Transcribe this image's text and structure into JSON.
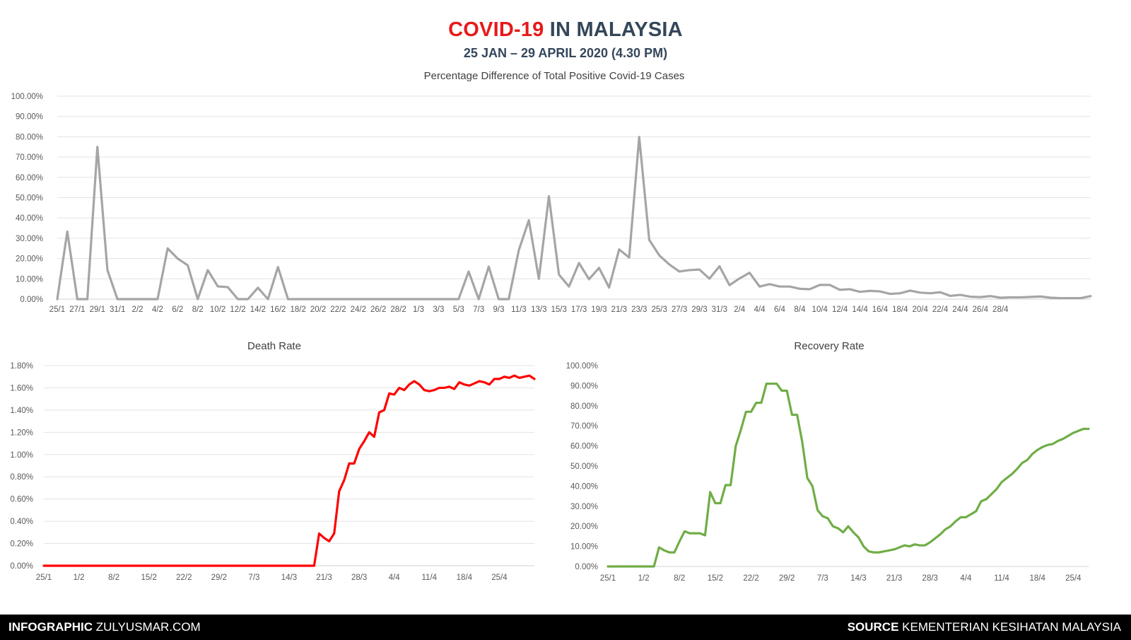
{
  "header": {
    "title_red": "COVID-19",
    "title_rest": "IN MALAYSIA",
    "subtitle": "25 JAN – 29 APRIL 2020 (4.30 PM)"
  },
  "footer": {
    "left_bold": "INFOGRAPHIC",
    "left_text": "ZULYUSMAR.COM",
    "right_bold": "SOURCE",
    "right_text": "KEMENTERIAN KESIHATAN MALAYSIA"
  },
  "colors": {
    "positive": "#a5a5a5",
    "death": "#ff0000",
    "recovery": "#70ad47"
  },
  "chart_data": [
    {
      "id": "positive",
      "type": "line",
      "title": "Percentage Difference of Total Positive Covid-19 Cases",
      "ylim": [
        0,
        100
      ],
      "yticks": [
        "0.00%",
        "10.00%",
        "20.00%",
        "30.00%",
        "40.00%",
        "50.00%",
        "60.00%",
        "70.00%",
        "80.00%",
        "90.00%",
        "100.00%"
      ],
      "grid": true,
      "xticks": [
        "25/1",
        "27/1",
        "29/1",
        "31/1",
        "2/2",
        "4/2",
        "6/2",
        "8/2",
        "10/2",
        "12/2",
        "14/2",
        "16/2",
        "18/2",
        "20/2",
        "22/2",
        "24/2",
        "26/2",
        "28/2",
        "1/3",
        "3/3",
        "5/3",
        "7/3",
        "9/3",
        "11/3",
        "13/3",
        "15/3",
        "17/3",
        "19/3",
        "21/3",
        "23/3",
        "25/3",
        "27/3",
        "29/3",
        "31/3",
        "2/4",
        "4/4",
        "6/4",
        "8/4",
        "10/4",
        "12/4",
        "14/4",
        "16/4",
        "18/4",
        "20/4",
        "22/4",
        "24/4",
        "26/4",
        "28/4"
      ],
      "series": [
        {
          "values": [
            0,
            33.3,
            0,
            0,
            75,
            14.3,
            0,
            0,
            0,
            0,
            0,
            25,
            20,
            16.7,
            0,
            14.3,
            6.3,
            5.9,
            0,
            0,
            5.6,
            0,
            15.8,
            0,
            0,
            0,
            0,
            0,
            0,
            0,
            0,
            0,
            0,
            0,
            0,
            0,
            0,
            0,
            0,
            0,
            0,
            13.6,
            0,
            16,
            0,
            0,
            24.1,
            38.9,
            10,
            50.7,
            12.1,
            6.2,
            17.8,
            9.8,
            15.4,
            5.7,
            24.5,
            20.5,
            79.9,
            29.2,
            21.6,
            17.1,
            13.6,
            14.3,
            14.6,
            10.1,
            16.2,
            6.9,
            10.2,
            13,
            6.2,
            7.4,
            6.2,
            6.2,
            5.1,
            4.9,
            7,
            7,
            4.6,
            4.9,
            3.6,
            4.1,
            3.8,
            2.6,
            2.9,
            4.2,
            3.2,
            2.9,
            3.4,
            1.6,
            2.1,
            1.2,
            1,
            1.5,
            0.7,
            0.9,
            0.9,
            1.1,
            1.3,
            0.7,
            0.5,
            0.5,
            0.5,
            1.5
          ]
        }
      ]
    },
    {
      "id": "death",
      "type": "line",
      "title": "Death Rate",
      "ylim": [
        0,
        1.8
      ],
      "yticks": [
        "0.00%",
        "0.20%",
        "0.40%",
        "0.60%",
        "0.80%",
        "1.00%",
        "1.20%",
        "1.40%",
        "1.60%",
        "1.80%"
      ],
      "grid": true,
      "xticks": [
        "25/1",
        "1/2",
        "8/2",
        "15/2",
        "22/2",
        "29/2",
        "7/3",
        "14/3",
        "21/3",
        "28/3",
        "4/4",
        "11/4",
        "18/4",
        "25/4"
      ],
      "series": [
        {
          "values": [
            0,
            0,
            0,
            0,
            0,
            0,
            0,
            0,
            0,
            0,
            0,
            0,
            0,
            0,
            0,
            0,
            0,
            0,
            0,
            0,
            0,
            0,
            0,
            0,
            0,
            0,
            0,
            0,
            0,
            0,
            0,
            0,
            0,
            0,
            0,
            0,
            0,
            0,
            0,
            0,
            0,
            0,
            0,
            0,
            0,
            0,
            0,
            0,
            0,
            0,
            0,
            0,
            0,
            0,
            0,
            0.29,
            0.25,
            0.22,
            0.29,
            0.67,
            0.77,
            0.92,
            0.92,
            1.05,
            1.12,
            1.2,
            1.16,
            1.38,
            1.4,
            1.55,
            1.54,
            1.6,
            1.58,
            1.63,
            1.66,
            1.63,
            1.58,
            1.57,
            1.58,
            1.6,
            1.6,
            1.61,
            1.59,
            1.65,
            1.63,
            1.62,
            1.64,
            1.66,
            1.65,
            1.63,
            1.68,
            1.68,
            1.7,
            1.69,
            1.71,
            1.69,
            1.7,
            1.71,
            1.68
          ]
        }
      ]
    },
    {
      "id": "recovery",
      "type": "line",
      "title": "Recovery Rate",
      "ylim": [
        0,
        100
      ],
      "yticks": [
        "0.00%",
        "10.00%",
        "20.00%",
        "30.00%",
        "40.00%",
        "50.00%",
        "60.00%",
        "70.00%",
        "80.00%",
        "90.00%",
        "100.00%"
      ],
      "grid": false,
      "xticks": [
        "25/1",
        "1/2",
        "8/2",
        "15/2",
        "22/2",
        "29/2",
        "7/3",
        "14/3",
        "21/3",
        "28/3",
        "4/4",
        "11/4",
        "18/4",
        "25/4"
      ],
      "series": [
        {
          "values": [
            0,
            0,
            0,
            0,
            0,
            0,
            0,
            0,
            0,
            0,
            9.5,
            8,
            7,
            7,
            12.5,
            17.5,
            16.5,
            16.5,
            16.5,
            15.5,
            37,
            31.5,
            31.5,
            40.5,
            40.5,
            60,
            68,
            77,
            77,
            81.5,
            81.5,
            91,
            91,
            91,
            87.5,
            87.5,
            75.5,
            75.5,
            62,
            44,
            40,
            28,
            25,
            24,
            20,
            19,
            17,
            20,
            17,
            14.5,
            10,
            7.5,
            7,
            7,
            7.5,
            8,
            8.5,
            9.5,
            10.5,
            10,
            11,
            10.5,
            10.5,
            12,
            14,
            16,
            18.5,
            20,
            22.5,
            24.5,
            24.5,
            26,
            27.5,
            32.5,
            33.5,
            36,
            38.5,
            42,
            44,
            46,
            48.5,
            51.5,
            53,
            56,
            58,
            59.5,
            60.5,
            61,
            62.5,
            63.5,
            65,
            66.5,
            67.5,
            68.5,
            68.5
          ]
        }
      ]
    }
  ]
}
